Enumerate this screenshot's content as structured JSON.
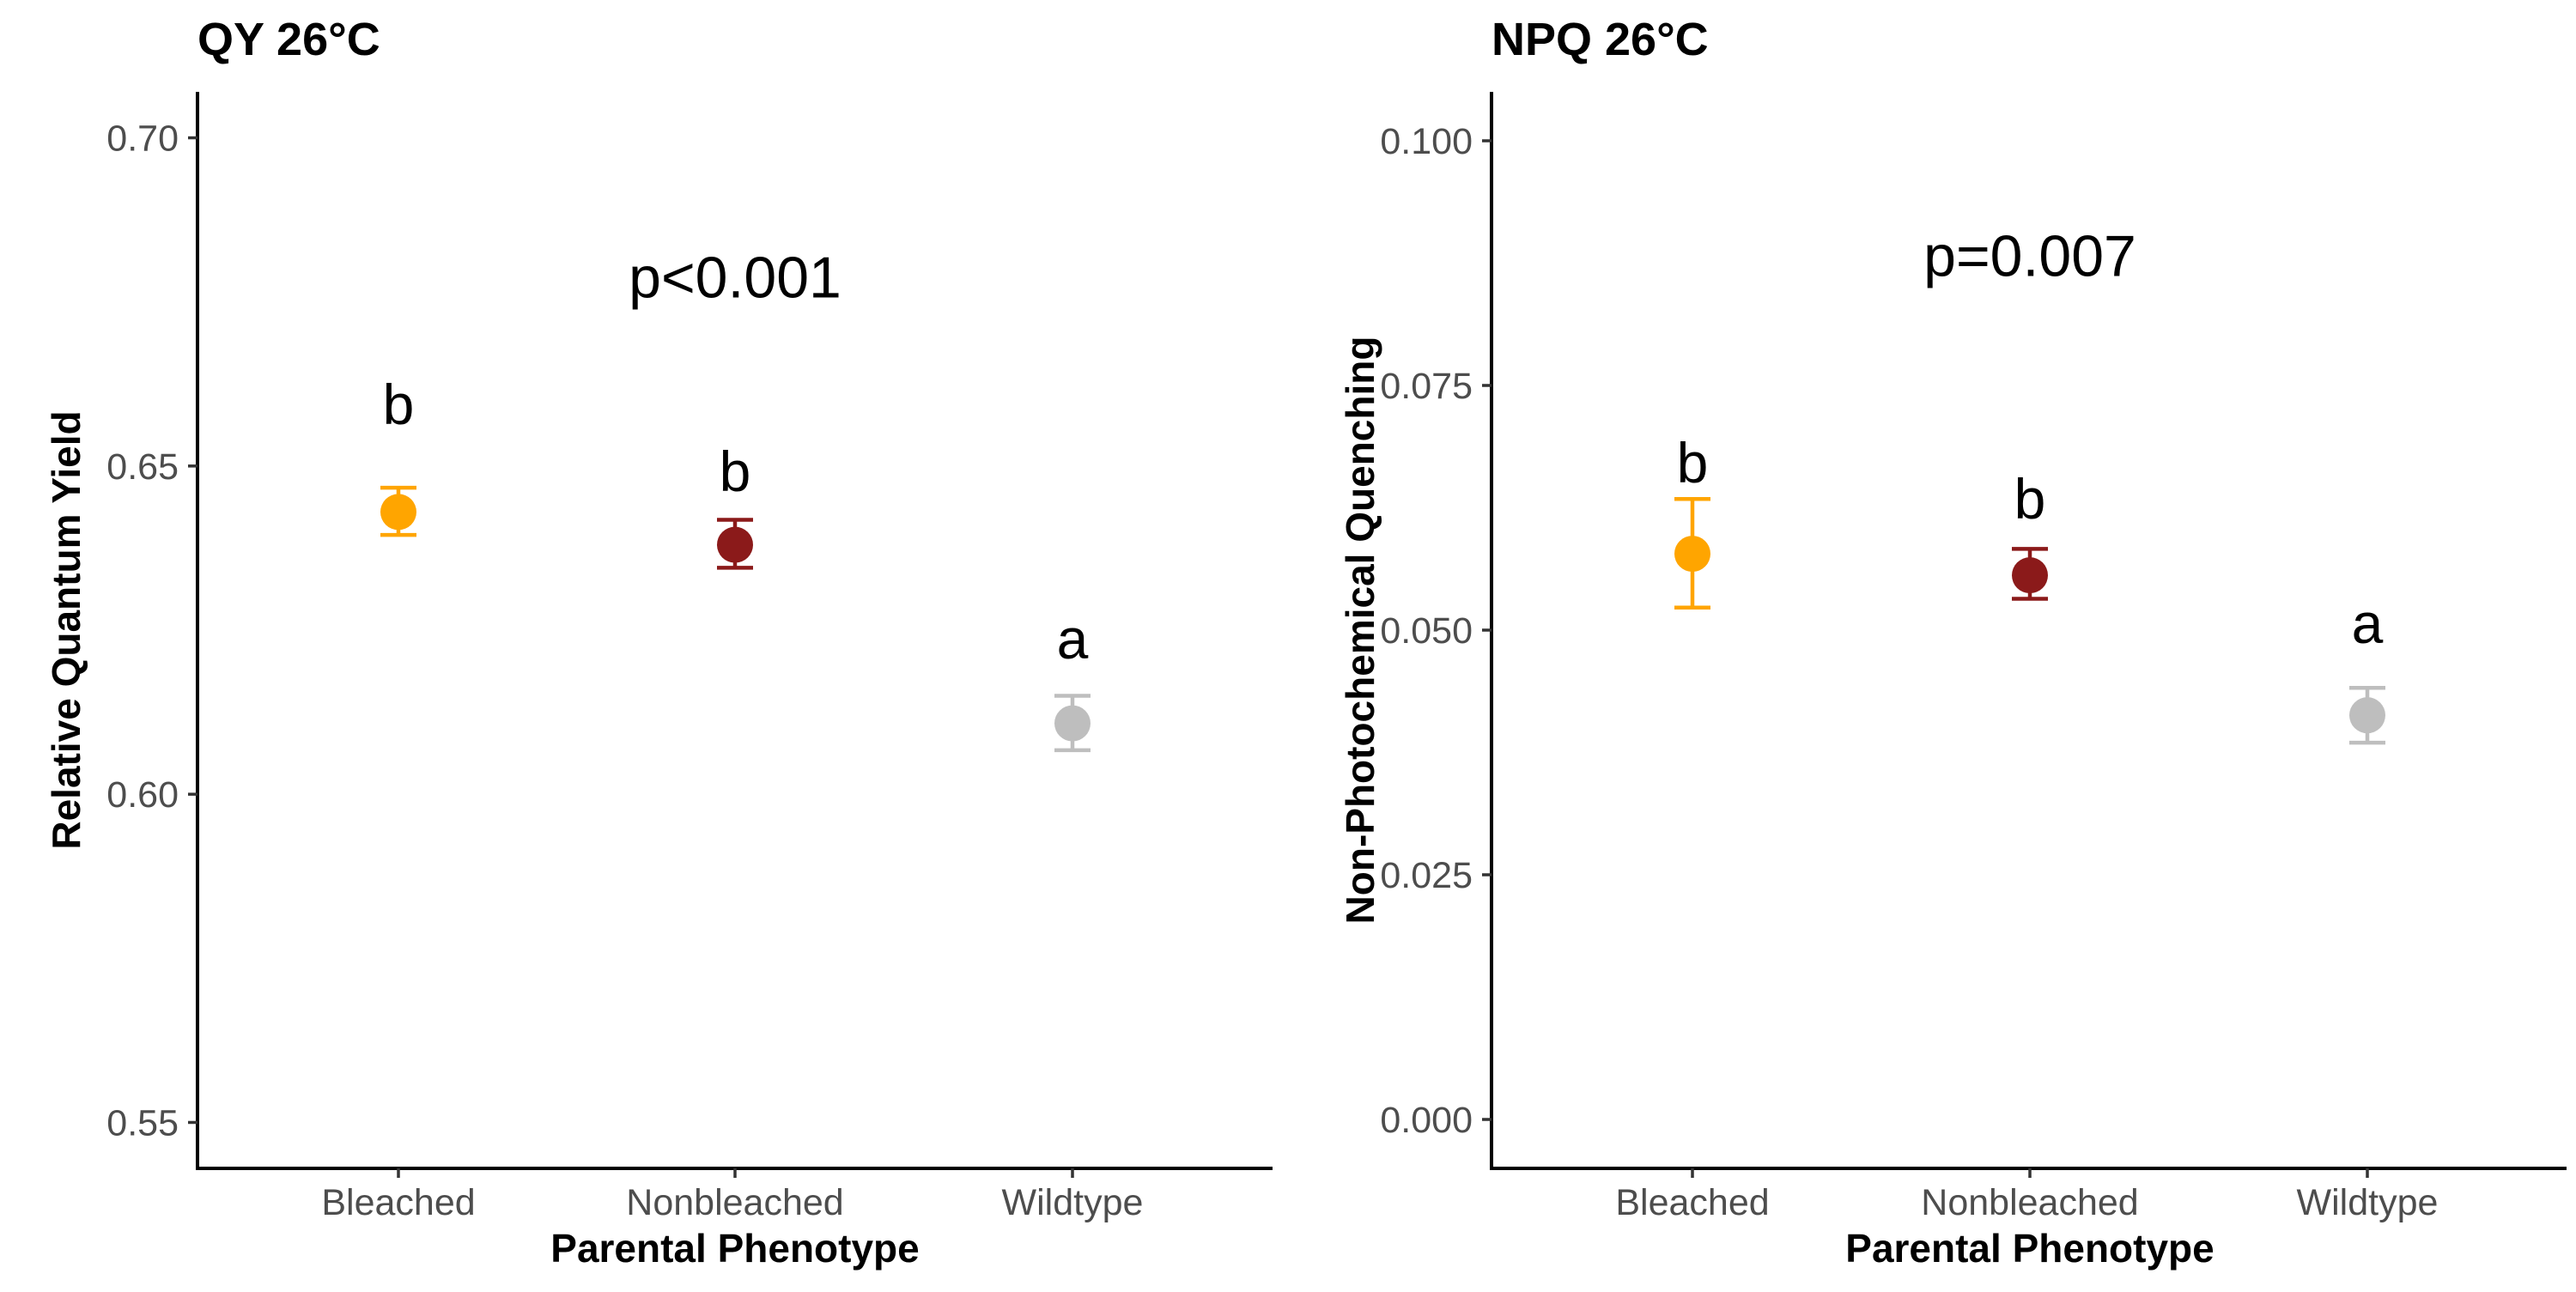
{
  "chart_data": [
    {
      "type": "scatter",
      "title": "QY 26°C",
      "xlabel": "Parental Phenotype",
      "ylabel": "Relative Quantum Yield",
      "categories": [
        "Bleached",
        "Nonbleached",
        "Wildtype"
      ],
      "ylim": [
        0.543,
        0.707
      ],
      "yticks": [
        0.55,
        0.6,
        0.65,
        0.7
      ],
      "ytick_labels": [
        "0.55",
        "0.60",
        "0.65",
        "0.70"
      ],
      "points": [
        {
          "category": "Bleached",
          "mean": 0.643,
          "lower": 0.6395,
          "upper": 0.6467,
          "color": "#FFA500",
          "letter": "b"
        },
        {
          "category": "Nonbleached",
          "mean": 0.638,
          "lower": 0.6345,
          "upper": 0.6418,
          "color": "#8B1A1A",
          "letter": "b"
        },
        {
          "category": "Wildtype",
          "mean": 0.6108,
          "lower": 0.6067,
          "upper": 0.615,
          "color": "#BEBEBE",
          "letter": "a"
        }
      ],
      "p_label": "p<0.001",
      "p_position": {
        "category_index": 1,
        "y": 0.6788
      },
      "letter_y": [
        0.6595,
        0.6493,
        0.6238
      ],
      "grid": false,
      "legend": "none"
    },
    {
      "type": "scatter",
      "title": "NPQ 26°C",
      "xlabel": "Parental Phenotype",
      "ylabel": "Non-Photochemical Quenching",
      "categories": [
        "Bleached",
        "Nonbleached",
        "Wildtype"
      ],
      "ylim": [
        -0.005,
        0.105
      ],
      "yticks": [
        0.0,
        0.025,
        0.05,
        0.075,
        0.1
      ],
      "ytick_labels": [
        "0.000",
        "0.025",
        "0.050",
        "0.075",
        "0.100"
      ],
      "points": [
        {
          "category": "Bleached",
          "mean": 0.0578,
          "lower": 0.0523,
          "upper": 0.0634,
          "color": "#FFA500",
          "letter": "b"
        },
        {
          "category": "Nonbleached",
          "mean": 0.0556,
          "lower": 0.0532,
          "upper": 0.0583,
          "color": "#8B1A1A",
          "letter": "b"
        },
        {
          "category": "Wildtype",
          "mean": 0.0413,
          "lower": 0.0385,
          "upper": 0.0441,
          "color": "#BEBEBE",
          "letter": "a"
        }
      ],
      "p_label": "p=0.007",
      "p_position": {
        "category_index": 1,
        "y": 0.0883
      },
      "letter_y": [
        0.0672,
        0.0635,
        0.0508
      ],
      "grid": false,
      "legend": "none"
    }
  ]
}
